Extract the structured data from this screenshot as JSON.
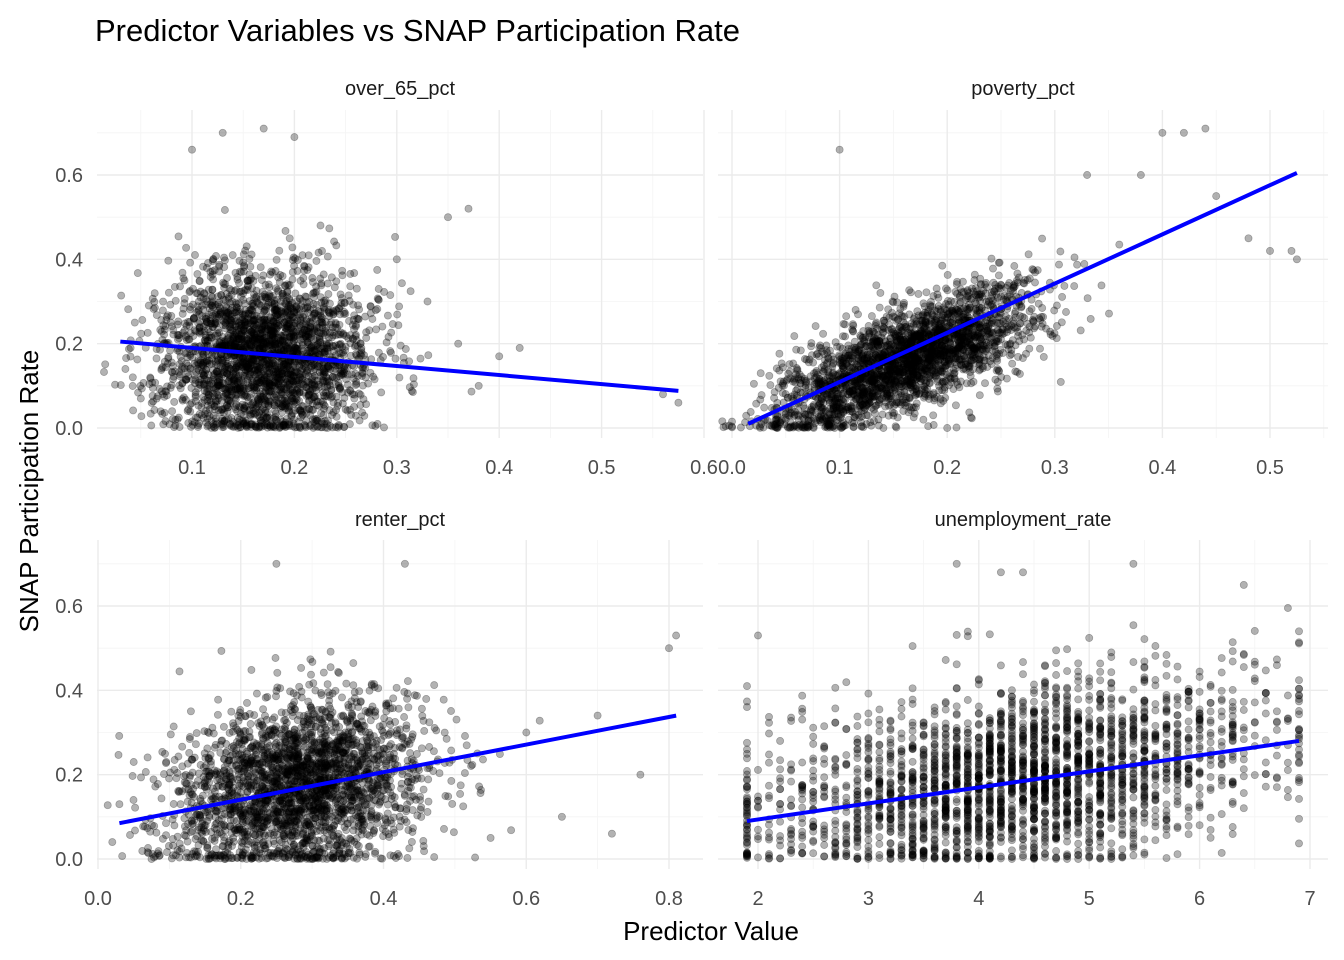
{
  "chart_data": {
    "type": "scatter",
    "title": "Predictor Variables vs SNAP Participation Rate",
    "xlabel": "Predictor Value",
    "ylabel": "SNAP Participation Rate",
    "ylim": [
      0,
      0.72
    ],
    "y_ticks": [
      "0.0",
      "0.2",
      "0.4",
      "0.6"
    ],
    "y_tick_values": [
      0,
      0.2,
      0.4,
      0.6
    ],
    "fit_color": "#0000ff",
    "point_color": "#000000",
    "grid": true,
    "panels": [
      {
        "name": "over_65_pct",
        "xlim": [
          0.03,
          0.575
        ],
        "x_ticks": [
          "0.1",
          "0.2",
          "0.3",
          "0.4",
          "0.5",
          "0.6"
        ],
        "x_tick_values": [
          0.1,
          0.2,
          0.3,
          0.4,
          0.5,
          0.6
        ],
        "fit_line": {
          "x": [
            0.03,
            0.575
          ],
          "y": [
            0.205,
            0.088
          ]
        },
        "cloud": {
          "kind": "continuous",
          "x_center": 0.17,
          "x_sd": 0.05,
          "y_center": 0.17,
          "y_sd": 0.1,
          "slope": 0
        },
        "points": [
          [
            0.1,
            0.66
          ],
          [
            0.13,
            0.7
          ],
          [
            0.17,
            0.71
          ],
          [
            0.2,
            0.69
          ],
          [
            0.35,
            0.5
          ],
          [
            0.37,
            0.52
          ],
          [
            0.42,
            0.19
          ],
          [
            0.56,
            0.08
          ],
          [
            0.575,
            0.06
          ],
          [
            0.035,
            0.14
          ],
          [
            0.04,
            0.19
          ],
          [
            0.3,
            0.4
          ],
          [
            0.33,
            0.3
          ],
          [
            0.36,
            0.2
          ],
          [
            0.4,
            0.17
          ],
          [
            0.38,
            0.1
          ],
          [
            0.05,
            0.07
          ]
        ]
      },
      {
        "name": "poverty_pct",
        "xlim": [
          0.015,
          0.53
        ],
        "x_ticks": [
          "0.0",
          "0.1",
          "0.2",
          "0.3",
          "0.4",
          "0.5"
        ],
        "x_tick_values": [
          0.0,
          0.1,
          0.2,
          0.3,
          0.4,
          0.5
        ],
        "fit_line": {
          "x": [
            0.015,
            0.525
          ],
          "y": [
            0.01,
            0.605
          ]
        },
        "cloud": {
          "kind": "continuous",
          "x_center": 0.16,
          "x_sd": 0.06,
          "y_center": 0.16,
          "y_sd": 0.06,
          "slope": 1.05
        },
        "points": [
          [
            0.28,
            0.72
          ],
          [
            0.42,
            0.7
          ],
          [
            0.4,
            0.7
          ],
          [
            0.44,
            0.71
          ],
          [
            0.1,
            0.66
          ],
          [
            0.5,
            0.42
          ],
          [
            0.525,
            0.4
          ],
          [
            0.48,
            0.45
          ],
          [
            0.52,
            0.42
          ],
          [
            0.33,
            0.6
          ],
          [
            0.38,
            0.6
          ],
          [
            0.45,
            0.55
          ],
          [
            0.2,
            0.0
          ],
          [
            0.05,
            0.02
          ]
        ]
      },
      {
        "name": "renter_pct",
        "xlim": [
          0.0,
          0.82
        ],
        "x_ticks": [
          "0.0",
          "0.2",
          "0.4",
          "0.6",
          "0.8"
        ],
        "x_tick_values": [
          0.0,
          0.2,
          0.4,
          0.6,
          0.8
        ],
        "fit_line": {
          "x": [
            0.03,
            0.81
          ],
          "y": [
            0.085,
            0.34
          ]
        },
        "cloud": {
          "kind": "continuous",
          "x_center": 0.28,
          "x_sd": 0.09,
          "y_center": 0.17,
          "y_sd": 0.1,
          "slope": 0.25
        },
        "points": [
          [
            0.81,
            0.53
          ],
          [
            0.8,
            0.5
          ],
          [
            0.02,
            0.04
          ],
          [
            0.03,
            0.13
          ],
          [
            0.05,
            0.23
          ],
          [
            0.65,
            0.1
          ],
          [
            0.7,
            0.34
          ],
          [
            0.76,
            0.2
          ],
          [
            0.72,
            0.06
          ],
          [
            0.55,
            0.05
          ],
          [
            0.6,
            0.3
          ],
          [
            0.4,
            0.72
          ],
          [
            0.43,
            0.7
          ],
          [
            0.25,
            0.7
          ]
        ]
      },
      {
        "name": "unemployment_rate",
        "xlim": [
          1.8,
          7.0
        ],
        "x_ticks": [
          "2",
          "3",
          "4",
          "5",
          "6",
          "7"
        ],
        "x_tick_values": [
          2,
          3,
          4,
          5,
          6,
          7
        ],
        "fit_line": {
          "x": [
            1.9,
            6.9
          ],
          "y": [
            0.09,
            0.28
          ]
        },
        "cloud": {
          "kind": "discrete",
          "x_min": 1.9,
          "x_max": 6.9,
          "x_step": 0.1,
          "y_center": 0.2,
          "y_sd": 0.11,
          "slope": 0.038
        },
        "points": [
          [
            4.5,
            0.72
          ],
          [
            5.4,
            0.7
          ],
          [
            3.8,
            0.7
          ],
          [
            4.2,
            0.68
          ],
          [
            4.4,
            0.68
          ],
          [
            1.9,
            0.41
          ],
          [
            2.0,
            0.53
          ],
          [
            6.9,
            0.54
          ],
          [
            6.4,
            0.65
          ],
          [
            4.3,
            0.0
          ],
          [
            4.5,
            0.0
          ],
          [
            4.8,
            0.0
          ],
          [
            4.9,
            0.0
          ],
          [
            5.2,
            0.0
          ]
        ]
      }
    ]
  }
}
